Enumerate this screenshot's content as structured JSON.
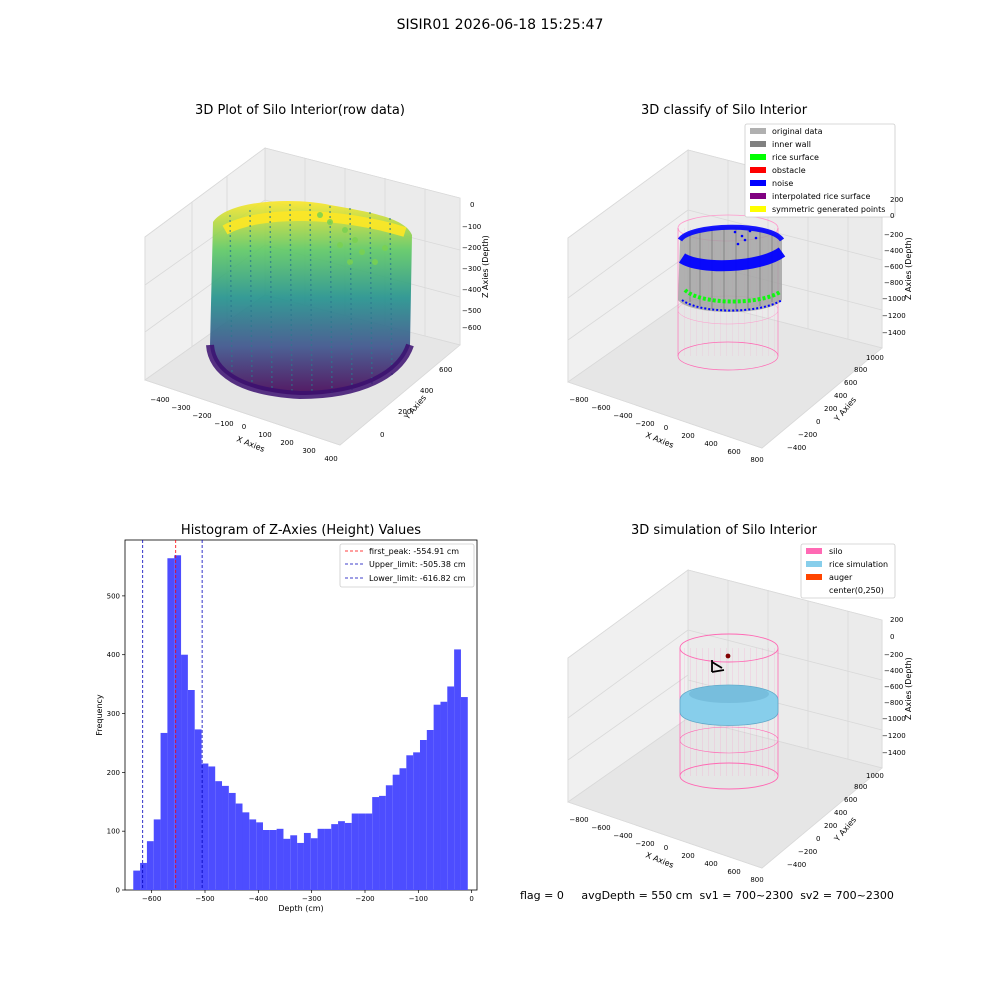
{
  "figure": {
    "suptitle": "SISIR01 2026-06-18 15:25:47",
    "footer": "flag = 0     avgDepth = 550 cm  sv1 = 700~2300  sv2 = 700~2300"
  },
  "colors": {
    "histogram_bar": "#4d4dff",
    "first_peak": "#ff0000",
    "limits": "#0000bb",
    "original_data": "#b0b0b0",
    "inner_wall": "#808080",
    "rice_surface": "#00ff00",
    "obstacle": "#ff0000",
    "noise": "#0000ff",
    "interpolated_rice_surface": "#800080",
    "symmetric_generated_points": "#ffff00",
    "silo": "#ff69b4",
    "rice_simulation": "#87ceeb",
    "auger": "#ff4500"
  },
  "chart_data": [
    {
      "type": "scatter",
      "title": "3D Plot of Silo Interior(row data)",
      "xlabel": "X Axies",
      "ylabel": "Y Axies",
      "zlabel": "Z Axies (Depth)",
      "xticks": [
        "−400",
        "−300",
        "−200",
        "−100",
        "0",
        "100",
        "200",
        "300",
        "400"
      ],
      "yticks": [
        "0",
        "200",
        "400",
        "600"
      ],
      "zticks": [
        "0",
        "−100",
        "−200",
        "−300",
        "−400",
        "−500",
        "−600"
      ],
      "xlim": [
        -450,
        420
      ],
      "ylim": [
        -100,
        700
      ],
      "zlim": [
        -650,
        0
      ],
      "colormap": "viridis",
      "shape": "cylindrical silo wall point cloud, radius about 350, depth 0 to -650"
    },
    {
      "type": "scatter",
      "title": "3D classify of Silo Interior",
      "xlabel": "X Axies",
      "ylabel": "Y Axies",
      "zlabel": "Z Axies (Depth)",
      "xticks": [
        "−800",
        "−600",
        "−400",
        "−200",
        "0",
        "200",
        "400",
        "600",
        "800"
      ],
      "yticks": [
        "−400",
        "−200",
        "0",
        "200",
        "400",
        "600",
        "800",
        "1000"
      ],
      "zticks": [
        "200",
        "0",
        "−200",
        "−400",
        "−600",
        "−800",
        "−1000",
        "−1200",
        "−1400"
      ],
      "legend": [
        "original data",
        "inner wall",
        "rice surface",
        "obstacle",
        "noise",
        "interpolated rice surface",
        "symmetric generated points"
      ],
      "legend_position": "top-right"
    },
    {
      "type": "bar",
      "title": "Histogram of Z-Axies (Height) Values",
      "xlabel": "Depth (cm)",
      "ylabel": "Frequency",
      "xlim": [
        -650,
        10
      ],
      "ylim": [
        0,
        595
      ],
      "xticks": [
        -600,
        -500,
        -400,
        -300,
        -200,
        -100,
        0
      ],
      "yticks": [
        0,
        100,
        200,
        300,
        400,
        500
      ],
      "bin_start": -634.5,
      "bin_width": 12.8,
      "values": [
        33,
        46,
        83,
        120,
        267,
        564,
        569,
        400,
        340,
        273,
        215,
        210,
        185,
        177,
        165,
        147,
        132,
        120,
        115,
        102,
        102,
        104,
        87,
        93,
        80,
        97,
        88,
        104,
        104,
        112,
        117,
        114,
        130,
        130,
        130,
        158,
        160,
        178,
        196,
        207,
        229,
        234,
        255,
        272,
        315,
        320,
        346,
        409,
        328
      ],
      "lines": [
        {
          "label": "first_peak: -554.91 cm",
          "x": -554.91,
          "color": "#ff0000"
        },
        {
          "label": "Upper_limit: -505.38 cm",
          "x": -505.38,
          "color": "#0000bb"
        },
        {
          "label": "Lower_limit: -616.82 cm",
          "x": -616.82,
          "color": "#0000bb"
        }
      ],
      "legend_position": "top-right"
    },
    {
      "type": "scatter",
      "title": "3D simulation of Silo Interior",
      "xlabel": "X Axies",
      "ylabel": "Y Axies",
      "zlabel": "Z Axies (Depth)",
      "xticks": [
        "−800",
        "−600",
        "−400",
        "−200",
        "0",
        "200",
        "400",
        "600",
        "800"
      ],
      "yticks": [
        "−400",
        "−200",
        "0",
        "200",
        "400",
        "600",
        "800",
        "1000"
      ],
      "zticks": [
        "200",
        "0",
        "−200",
        "−400",
        "−600",
        "−800",
        "−1000",
        "−1200",
        "−1400"
      ],
      "legend": [
        "silo",
        "rice simulation",
        "auger",
        "center(0,250)"
      ],
      "legend_position": "top-right"
    }
  ]
}
